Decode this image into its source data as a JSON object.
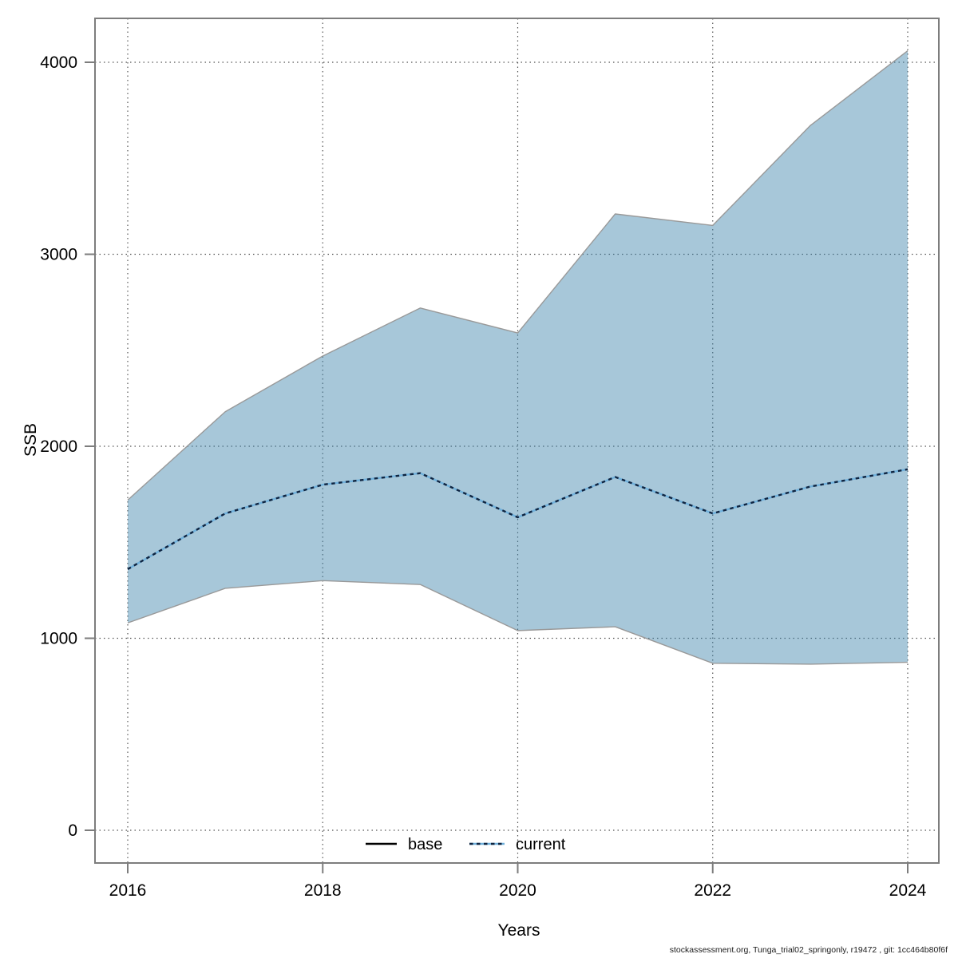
{
  "page": {
    "background": "#ffffff"
  },
  "footer": {
    "text": "stockassessment.org, Tunga_trial02_springonly, r19472 , git: 1cc464b80f6f"
  },
  "colors": {
    "band_fill": "rgba(60,130,170,0.45)",
    "band_fill_flat": "#a5c5d9",
    "band_edge": "#999999",
    "median_underlay": "#70b1dc",
    "median_overlay": "#0f2440",
    "base_line": "#000000",
    "frame": "#7d7d7d",
    "gridline": "#555555",
    "tick_label": "#000000"
  },
  "chart_data": {
    "type": "area",
    "title": "",
    "xlabel": "Years",
    "ylabel": "SSB",
    "x": [
      2016,
      2017,
      2018,
      2019,
      2020,
      2021,
      2022,
      2023,
      2024
    ],
    "xticks": [
      2016,
      2018,
      2020,
      2022,
      2024
    ],
    "yticks": [
      0,
      1000,
      2000,
      3000,
      4000
    ],
    "xlim": [
      2015.65,
      2024.32
    ],
    "ylim": [
      -170,
      4230
    ],
    "grid": "dotted",
    "legend_position": "bottom-center",
    "series": [
      {
        "name": "base",
        "line_style": "solid",
        "color": "#000000",
        "values": [
          1360,
          1650,
          1800,
          1860,
          1630,
          1840,
          1650,
          1790,
          1880
        ]
      },
      {
        "name": "current",
        "line_style": "dotted",
        "color": "#0f2440",
        "underlay_color": "#70b1dc",
        "values": [
          1360,
          1650,
          1800,
          1860,
          1630,
          1840,
          1650,
          1790,
          1880
        ],
        "band_upper": [
          1720,
          2180,
          2470,
          2720,
          2590,
          3210,
          3150,
          3670,
          4060
        ],
        "band_lower": [
          1080,
          1260,
          1300,
          1280,
          1040,
          1060,
          870,
          865,
          875
        ],
        "band_fill": "rgba(60,130,170,0.45)"
      }
    ]
  }
}
